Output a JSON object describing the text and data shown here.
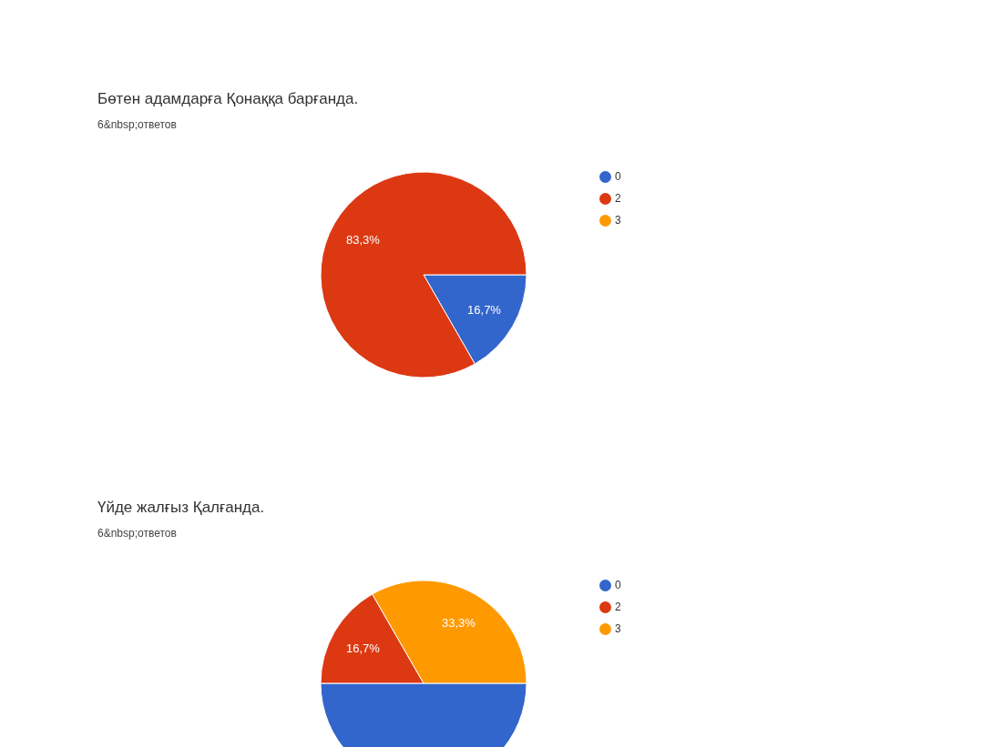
{
  "chart_data": [
    {
      "type": "pie",
      "title": "Бөтен адамдарға Қонаққа барғанда.",
      "subtitle": "6&nbsp;ответов",
      "categories": [
        "0",
        "2",
        "3"
      ],
      "values": [
        16.7,
        83.3,
        0
      ],
      "colors": [
        "#3366cc",
        "#dc3912",
        "#ff9900"
      ],
      "value_labels": [
        "16,7%",
        "83,3%",
        null
      ],
      "legend": "top right"
    },
    {
      "type": "pie",
      "title": "Үйде жалғыз Қалғанда.",
      "subtitle": "6&nbsp;ответов",
      "categories": [
        "0",
        "2",
        "3"
      ],
      "values": [
        50,
        16.7,
        33.3
      ],
      "colors": [
        "#3366cc",
        "#dc3912",
        "#ff9900"
      ],
      "value_labels": [
        null,
        "16,7%",
        "33,3%"
      ],
      "legend": "top right"
    }
  ]
}
